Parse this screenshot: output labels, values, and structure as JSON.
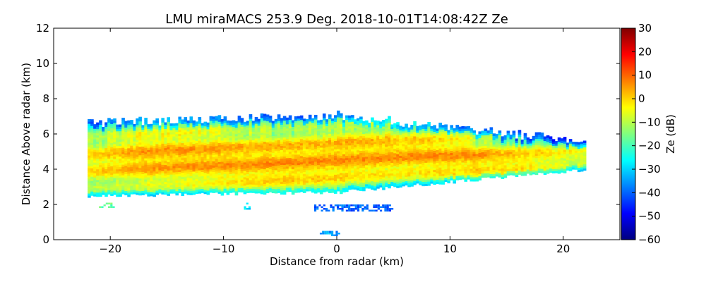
{
  "chart_data": {
    "type": "heatmap",
    "title": "LMU miraMACS 253.9 Deg. 2018-10-01T14:08:42Z  Ze",
    "xlabel": "Distance from radar (km)",
    "ylabel": "Distance Above radar  (km)",
    "xlim": [
      -25,
      25
    ],
    "ylim": [
      0,
      12
    ],
    "x_ticks": [
      -20,
      -10,
      0,
      10,
      20
    ],
    "x_tick_labels": [
      "−20",
      "−10",
      "0",
      "10",
      "20"
    ],
    "y_ticks": [
      0,
      2,
      4,
      6,
      8,
      10,
      12
    ],
    "y_tick_labels": [
      "0",
      "2",
      "4",
      "6",
      "8",
      "10",
      "12"
    ],
    "colorbar": {
      "label": "Ze (dB)",
      "colormap": "jet",
      "range": [
        -60,
        30
      ],
      "ticks": [
        30,
        20,
        10,
        0,
        -10,
        -20,
        -30,
        -40,
        -50,
        -60
      ],
      "tick_labels": [
        "30",
        "20",
        "10",
        "0",
        "−10",
        "−20",
        "−30",
        "−40",
        "−50",
        "−60"
      ]
    },
    "echo_layer": {
      "x_extent_km": [
        -22,
        22
      ],
      "base_km_left": 2.5,
      "base_km_center": 2.7,
      "base_km_right": 4.0,
      "top_km_left": 6.6,
      "top_km_center": 7.0,
      "top_km_right": 5.5,
      "core_height_km": 4.0,
      "max_ze_db": 3
    },
    "clutter": [
      {
        "x_km": [
          -2,
          5
        ],
        "y_km": [
          1.6,
          2.0
        ],
        "ze_db": -40
      },
      {
        "x_km": [
          -8.2,
          -7.6
        ],
        "y_km": [
          1.7,
          2.1
        ],
        "ze_db": -30
      },
      {
        "x_km": [
          -21,
          -19.8
        ],
        "y_km": [
          1.8,
          2.1
        ],
        "ze_db": -18
      },
      {
        "x_km": [
          -1.5,
          0.2
        ],
        "y_km": [
          0.2,
          0.5
        ],
        "ze_db": -35
      }
    ]
  }
}
